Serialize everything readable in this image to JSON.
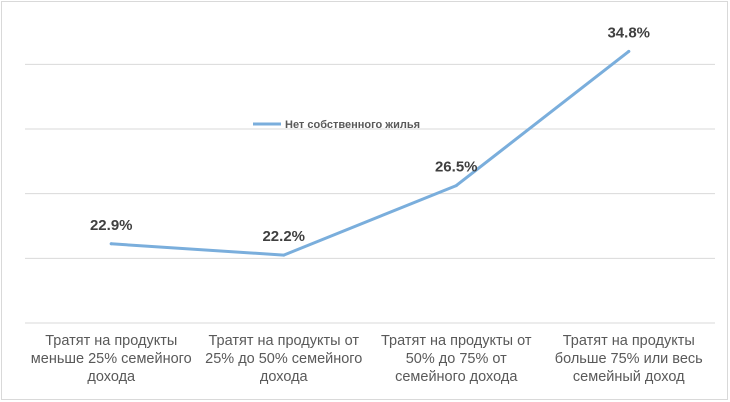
{
  "chart_data": {
    "type": "line",
    "categories": [
      "Тратят на продукты меньше 25% семейного дохода",
      "Тратят на продукты от 25% до 50% семейного дохода",
      "Тратят на продукты от 50% до 75% от семейного дохода",
      "Тратят на продукты больше 75% или весь семейный доход"
    ],
    "category_lines": [
      [
        "Тратят на продукты",
        "меньше 25% семейного",
        "дохода"
      ],
      [
        "Тратят на продукты от",
        "25% до 50% семейного",
        "дохода"
      ],
      [
        "Тратят на продукты от",
        "50% до 75% от",
        "семейного дохода"
      ],
      [
        "Тратят на продукты",
        "больше 75% или весь",
        "семейный доход"
      ]
    ],
    "series": [
      {
        "name": "Нет собственного жилья",
        "values": [
          22.9,
          22.2,
          26.5,
          34.8
        ],
        "labels": [
          "22.9%",
          "22.2%",
          "26.5%",
          "34.8%"
        ],
        "color": "#7aaedc"
      }
    ],
    "ylim": [
      18,
      36
    ],
    "y_gridlines": [
      18,
      22,
      26,
      30,
      34
    ],
    "grid": true,
    "legend_position": "inside-top-left",
    "title": "",
    "xlabel": "",
    "ylabel": ""
  }
}
